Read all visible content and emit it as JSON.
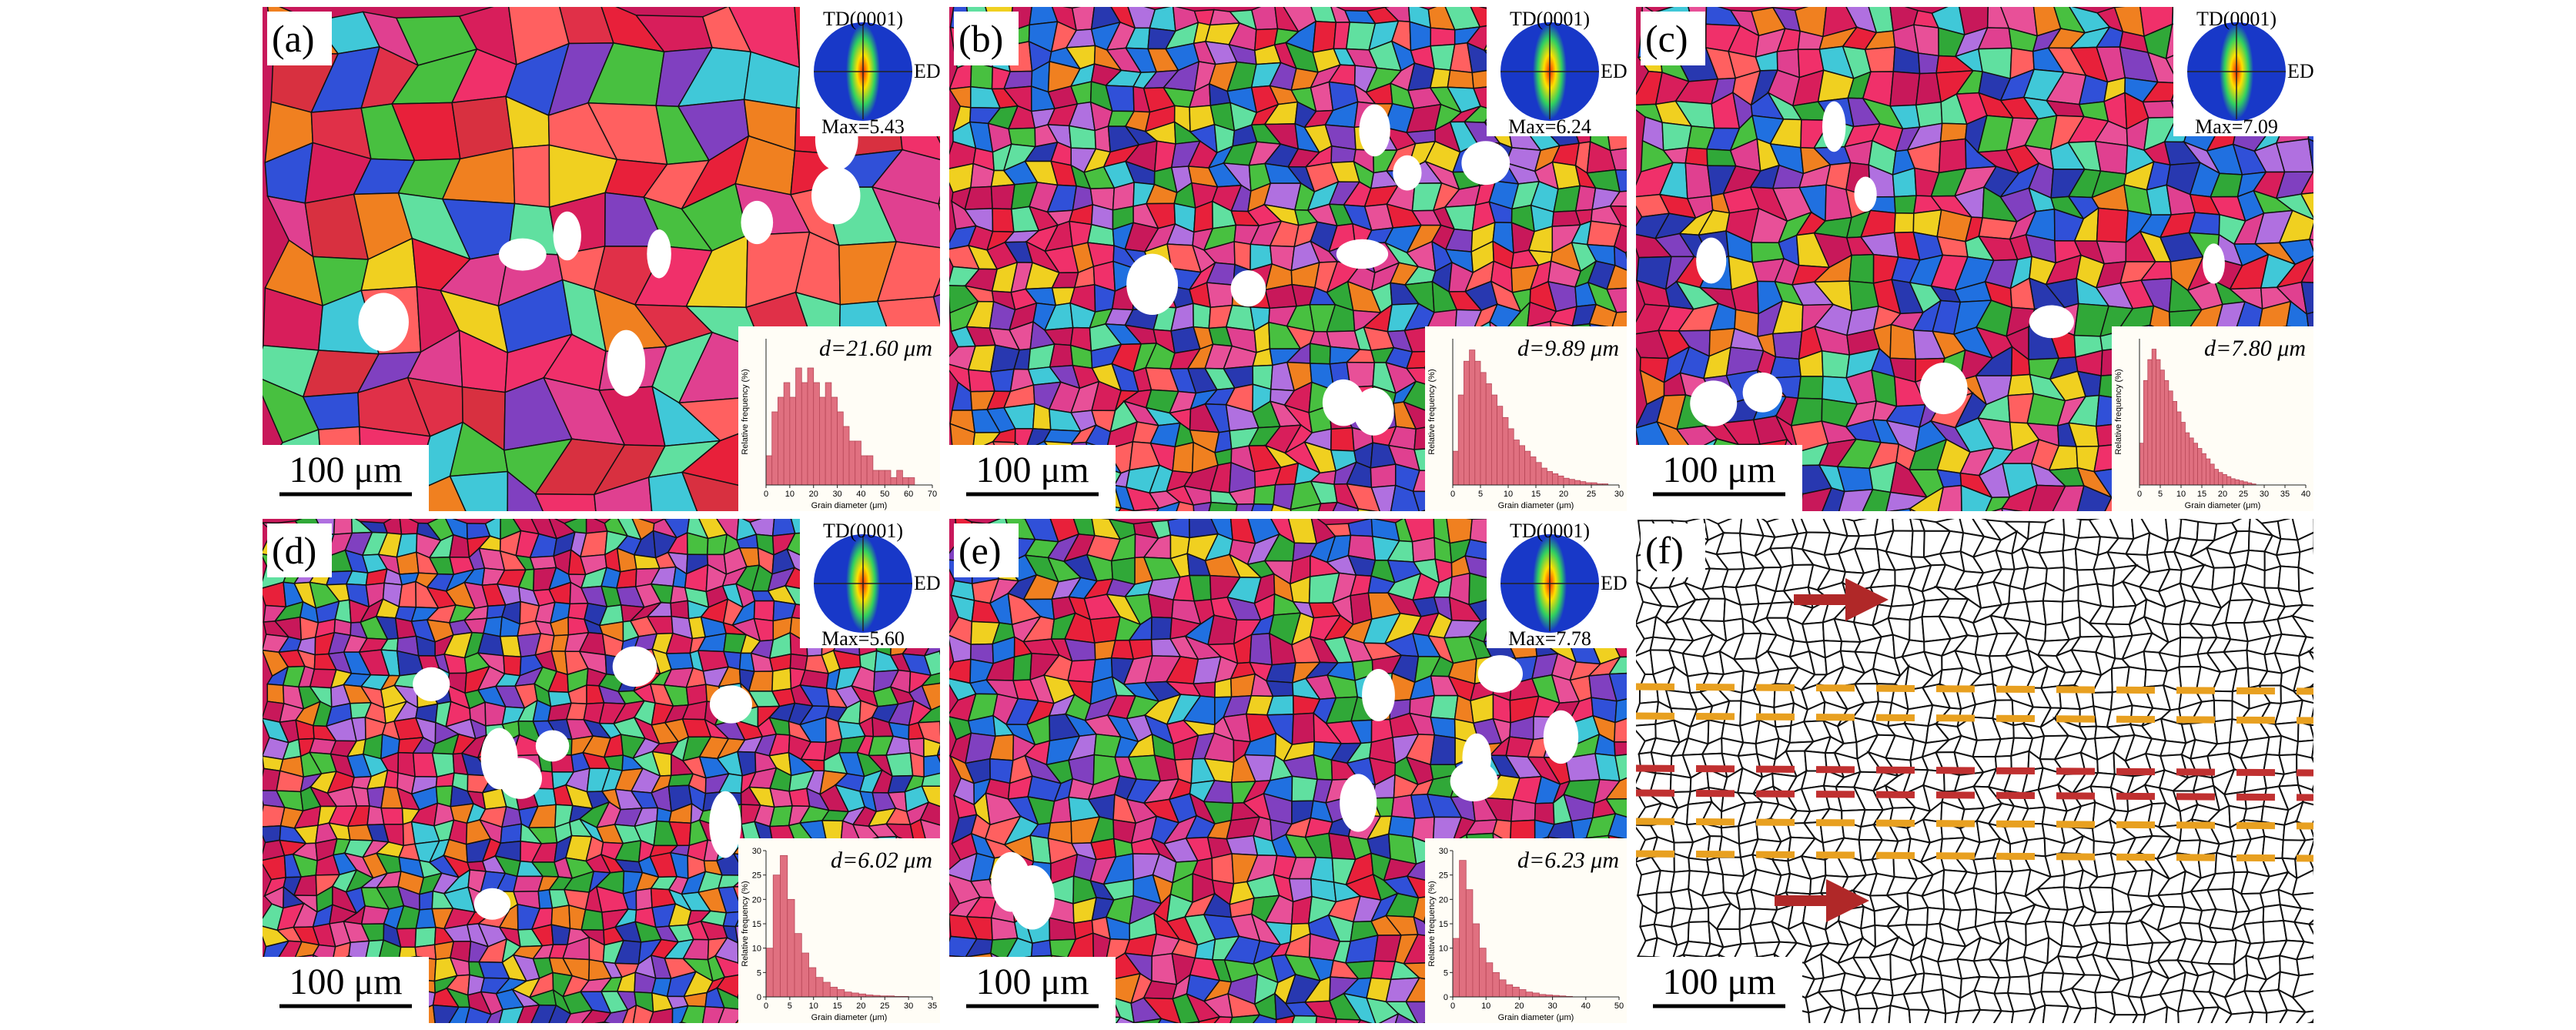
{
  "panels": [
    {
      "label": "(a)",
      "pole_figure": {
        "title": "TD(0001)",
        "axis": "ED",
        "max": "Max=5.43"
      },
      "histogram": {
        "mean": "d=21.60 μm",
        "x_label": "Grain diameter (μm)",
        "y_label": "Relative frequency (%)",
        "xlim": [
          0,
          70
        ],
        "xticks": [
          0,
          10,
          20,
          30,
          40,
          50,
          60,
          70
        ],
        "ylim": [
          0,
          10
        ],
        "bins": [
          0,
          2.5,
          5,
          7.5,
          10,
          12.5,
          15,
          17.5,
          20,
          22.5,
          25,
          27.5,
          30,
          32.5,
          35,
          37.5,
          40,
          42.5,
          45,
          47.5,
          50,
          52.5,
          55,
          57.5,
          60,
          62.5
        ],
        "counts": [
          2,
          5,
          6,
          7,
          6,
          8,
          7,
          8,
          7,
          6,
          7,
          6,
          5,
          4,
          3,
          3,
          2,
          2,
          1,
          1,
          1,
          0.5,
          1,
          0.5,
          0.5
        ]
      },
      "scale_bar": "100 μm"
    },
    {
      "label": "(b)",
      "pole_figure": {
        "title": "TD(0001)",
        "axis": "ED",
        "max": "Max=6.24"
      },
      "histogram": {
        "mean": "d=9.89 μm",
        "x_label": "Grain diameter (μm)",
        "y_label": "Relative frequency (%)",
        "xlim": [
          0,
          30
        ],
        "xticks": [
          0,
          5,
          10,
          15,
          20,
          25,
          30
        ],
        "ylim": [
          0,
          13
        ],
        "bins": [
          0,
          1,
          2,
          3,
          4,
          5,
          6,
          7,
          8,
          9,
          10,
          11,
          12,
          13,
          14,
          15,
          16,
          17,
          18,
          19,
          20,
          21,
          22,
          23,
          24,
          25,
          26,
          27,
          28
        ],
        "counts": [
          3,
          8,
          11,
          12,
          11,
          10,
          9,
          8,
          7,
          6,
          5,
          4,
          3.5,
          3,
          2.5,
          2,
          1.5,
          1.2,
          1,
          0.8,
          0.6,
          0.5,
          0.4,
          0.3,
          0.2,
          0.2,
          0.1,
          0.1
        ]
      },
      "scale_bar": "100 μm"
    },
    {
      "label": "(c)",
      "pole_figure": {
        "title": "TD(0001)",
        "axis": "ED",
        "max": "Max=7.09"
      },
      "histogram": {
        "mean": "d=7.80 μm",
        "x_label": "Grain diameter (μm)",
        "y_label": "Relative frequency (%)",
        "xlim": [
          0,
          40
        ],
        "xticks": [
          0,
          5,
          10,
          15,
          20,
          25,
          30,
          35,
          40
        ],
        "ylim": [
          0,
          14
        ],
        "bins": [
          0,
          1,
          2,
          3,
          4,
          5,
          6,
          7,
          8,
          9,
          10,
          11,
          12,
          13,
          14,
          15,
          16,
          17,
          18,
          19,
          20,
          21,
          22,
          23,
          24,
          25,
          26,
          27,
          28
        ],
        "counts": [
          4,
          10,
          12,
          13,
          12,
          11,
          10,
          9,
          8,
          7,
          6,
          5,
          4.5,
          4,
          3.5,
          3,
          2.5,
          2,
          1.5,
          1.2,
          1,
          0.8,
          0.6,
          0.5,
          0.4,
          0.3,
          0.2,
          0.1
        ]
      },
      "scale_bar": "100 μm"
    },
    {
      "label": "(d)",
      "pole_figure": {
        "title": "TD(0001)",
        "axis": "ED",
        "max": "Max=5.60"
      },
      "histogram": {
        "mean": "d=6.02 μm",
        "x_label": "Grain diameter (μm)",
        "y_label": "Relative frequency (%)",
        "xlim": [
          0,
          35
        ],
        "xticks": [
          0,
          5,
          10,
          15,
          20,
          25,
          30,
          35
        ],
        "ylim": [
          0,
          30
        ],
        "yticks": [
          0,
          5,
          10,
          15,
          20,
          25,
          30
        ],
        "bins": [
          0,
          1.5,
          3,
          4.5,
          6,
          7.5,
          9,
          10.5,
          12,
          13.5,
          15,
          16.5,
          18,
          19.5,
          21,
          22.5,
          24,
          25.5,
          27,
          28.5,
          30
        ],
        "counts": [
          10,
          25,
          29,
          20,
          13,
          9,
          6,
          4,
          3,
          2,
          1.5,
          1,
          0.8,
          0.6,
          0.4,
          0.3,
          0.2,
          0.2,
          0.1,
          0.1
        ]
      },
      "scale_bar": "100 μm"
    },
    {
      "label": "(e)",
      "pole_figure": {
        "title": "TD(0001)",
        "axis": "ED",
        "max": "Max=7.78"
      },
      "histogram": {
        "mean": "d=6.23 μm",
        "x_label": "Grain diameter (μm)",
        "y_label": "Relative frequency (%)",
        "xlim": [
          0,
          50
        ],
        "xticks": [
          0,
          10,
          20,
          30,
          40,
          50
        ],
        "ylim": [
          0,
          30
        ],
        "yticks": [
          0,
          5,
          10,
          15,
          20,
          25,
          30
        ],
        "bins": [
          0,
          2,
          4,
          6,
          8,
          10,
          12,
          14,
          16,
          18,
          20,
          22,
          24,
          26,
          28,
          30,
          32,
          34,
          36
        ],
        "counts": [
          12,
          28,
          22,
          15,
          10,
          7,
          5,
          3.5,
          2.5,
          2,
          1.5,
          1,
          0.8,
          0.5,
          0.4,
          0.3,
          0.2,
          0.1
        ]
      },
      "scale_bar": "100 μm"
    },
    {
      "label": "(f)",
      "scale_bar": "100 μm"
    }
  ]
}
